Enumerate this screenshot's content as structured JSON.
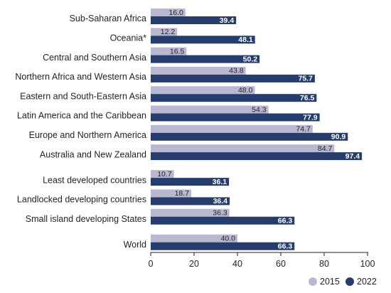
{
  "chart_data": {
    "type": "bar",
    "orientation": "horizontal",
    "categories": [
      "Sub-Saharan Africa",
      "Oceania*",
      "Central and Southern Asia",
      "Northern Africa and Western Asia",
      "Eastern and South-Eastern Asia",
      "Latin America and the Caribbean",
      "Europe and Northern America",
      "Australia and New Zealand",
      "Least developed countries",
      "Landlocked developing countries",
      "Small island developing States",
      "World"
    ],
    "groups": [
      [
        "Sub-Saharan Africa",
        "Oceania*",
        "Central and Southern Asia",
        "Northern Africa and Western Asia",
        "Eastern and South-Eastern Asia",
        "Latin America and the Caribbean",
        "Europe and Northern America",
        "Australia and New Zealand"
      ],
      [
        "Least developed countries",
        "Landlocked developing countries",
        "Small island developing States"
      ],
      [
        "World"
      ]
    ],
    "series": [
      {
        "name": "2015",
        "color": "#b9b8d3",
        "values": [
          16.0,
          12.2,
          16.5,
          43.8,
          48.0,
          54.3,
          74.7,
          84.7,
          10.7,
          18.7,
          36.3,
          40.0
        ],
        "labels": [
          "16.0",
          "12.2",
          "16.5",
          "43.8",
          "48.0",
          "54.3",
          "74.7",
          "84.7",
          "10.7",
          "18.7",
          "36.3",
          "40.0"
        ]
      },
      {
        "name": "2022",
        "color": "#253c6c",
        "values": [
          39.4,
          48.1,
          50.2,
          75.7,
          76.5,
          77.9,
          90.9,
          97.4,
          36.1,
          36.4,
          66.3,
          66.3
        ],
        "labels": [
          "39.4",
          "48.1",
          "50.2",
          "75.7",
          "76.5",
          "77.9",
          "90.9",
          "97.4",
          "36.1",
          "36.4",
          "66.3",
          "66.3"
        ]
      }
    ],
    "xlim": [
      0,
      100
    ],
    "ticks": [
      0,
      20,
      40,
      60,
      80,
      100
    ],
    "tick_labels": [
      "0",
      "20",
      "40",
      "60",
      "80",
      "100"
    ],
    "grid": false,
    "legend_position": "bottom-right",
    "title": "",
    "xlabel": "",
    "ylabel": ""
  }
}
